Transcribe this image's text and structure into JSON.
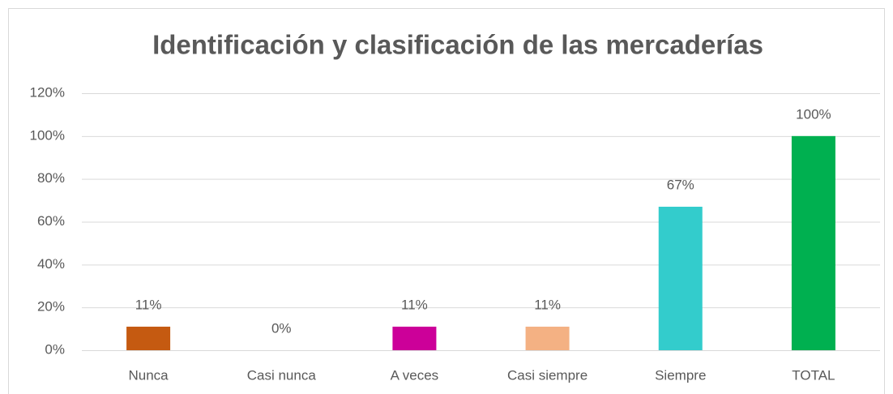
{
  "chart_data": {
    "type": "bar",
    "title": "Identificación y clasificación de las mercaderías",
    "categories": [
      "Nunca",
      "Casi nunca",
      "A veces",
      "Casi siempre",
      "Siempre",
      "TOTAL"
    ],
    "values": [
      11,
      0,
      11,
      11,
      67,
      100
    ],
    "value_labels": [
      "11%",
      "0%",
      "11%",
      "11%",
      "67%",
      "100%"
    ],
    "colors": [
      "#c55a11",
      "#a5a5a5",
      "#cc0099",
      "#f4b183",
      "#33cccc",
      "#00b050"
    ],
    "ylim": [
      0,
      120
    ],
    "yticks": [
      {
        "value": 0,
        "label": "0%"
      },
      {
        "value": 20,
        "label": "20%"
      },
      {
        "value": 40,
        "label": "40%"
      },
      {
        "value": 60,
        "label": "60%"
      },
      {
        "value": 80,
        "label": "80%"
      },
      {
        "value": 100,
        "label": "100%"
      },
      {
        "value": 120,
        "label": "120%"
      }
    ],
    "grid": true
  }
}
